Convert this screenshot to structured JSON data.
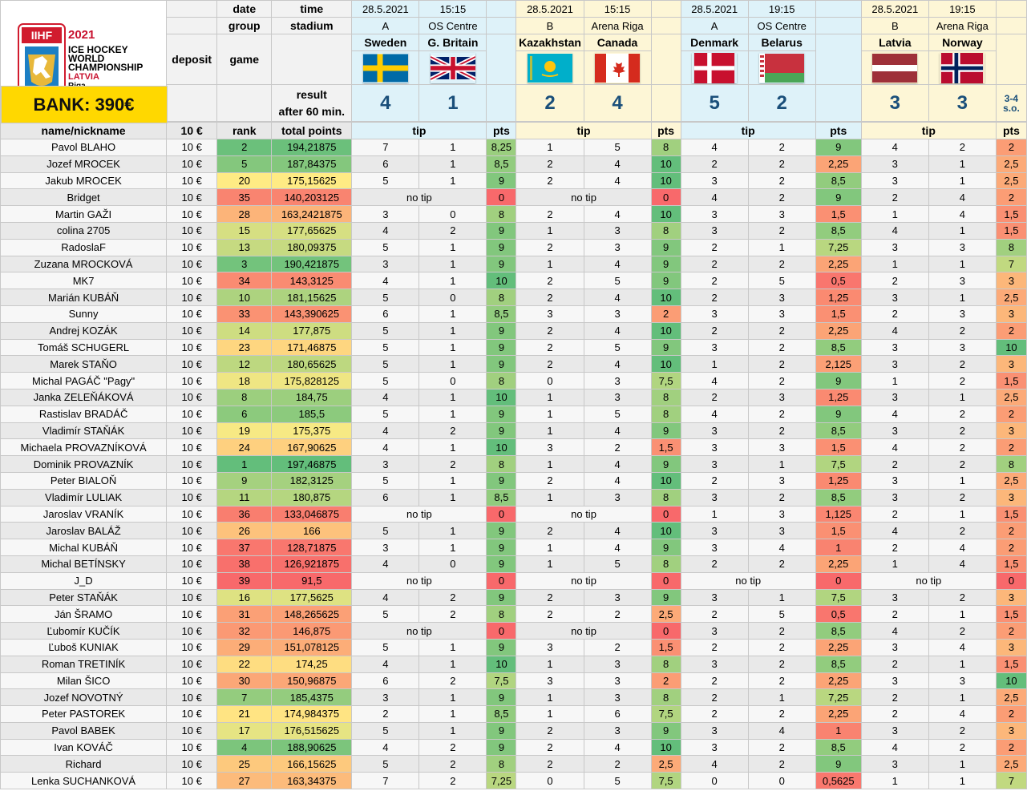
{
  "header": {
    "year": "2021",
    "event_line1": "ICE HOCKEY",
    "event_line2": "WORLD",
    "event_line3": "CHAMPIONSHIP",
    "host": "LATVIA",
    "city": "Riga",
    "logo_text": "IIHF",
    "bank_label": "BANK: 390€",
    "labels": {
      "date": "date",
      "time": "time",
      "group": "group",
      "stadium": "stadium",
      "deposit": "deposit",
      "game": "game",
      "result": "result",
      "after60": "after 60 min.",
      "name": "name/nickname",
      "deposit_val": "10 €",
      "rank": "rank",
      "total": "total points",
      "tip": "tip",
      "pts": "pts"
    }
  },
  "games": [
    {
      "date": "28.5.2021",
      "time": "15:15",
      "group": "A",
      "stadium": "OS Centre",
      "home": "Sweden",
      "away": "G. Britain",
      "home_score": "4",
      "away_score": "1",
      "note": "",
      "theme": "blue"
    },
    {
      "date": "28.5.2021",
      "time": "15:15",
      "group": "B",
      "stadium": "Arena Riga",
      "home": "Kazakhstan",
      "away": "Canada",
      "home_score": "2",
      "away_score": "4",
      "note": "",
      "theme": "yel"
    },
    {
      "date": "28.5.2021",
      "time": "19:15",
      "group": "A",
      "stadium": "OS Centre",
      "home": "Denmark",
      "away": "Belarus",
      "home_score": "5",
      "away_score": "2",
      "note": "",
      "theme": "blue"
    },
    {
      "date": "28.5.2021",
      "time": "19:15",
      "group": "B",
      "stadium": "Arena Riga",
      "home": "Latvia",
      "away": "Norway",
      "home_score": "3",
      "away_score": "3",
      "note": "3-4 s.o.",
      "theme": "yel"
    }
  ],
  "players": [
    {
      "name": "Pavol BLAHO",
      "dep": "10 €",
      "rank": "2",
      "total": "194,21875",
      "g": [
        [
          "7",
          "1",
          "8,25"
        ],
        [
          "1",
          "5",
          "8"
        ],
        [
          "4",
          "2",
          "9"
        ],
        [
          "4",
          "2",
          "2"
        ]
      ]
    },
    {
      "name": "Jozef MROCEK",
      "dep": "10 €",
      "rank": "5",
      "total": "187,84375",
      "g": [
        [
          "6",
          "1",
          "8,5"
        ],
        [
          "2",
          "4",
          "10"
        ],
        [
          "2",
          "2",
          "2,25"
        ],
        [
          "3",
          "1",
          "2,5"
        ]
      ]
    },
    {
      "name": "Jakub MROCEK",
      "dep": "10 €",
      "rank": "20",
      "total": "175,15625",
      "g": [
        [
          "5",
          "1",
          "9"
        ],
        [
          "2",
          "4",
          "10"
        ],
        [
          "3",
          "2",
          "8,5"
        ],
        [
          "3",
          "1",
          "2,5"
        ]
      ]
    },
    {
      "name": "Bridget",
      "dep": "10 €",
      "rank": "35",
      "total": "140,203125",
      "g": [
        [
          "no tip",
          "",
          "0"
        ],
        [
          "no tip",
          "",
          "0"
        ],
        [
          "4",
          "2",
          "9"
        ],
        [
          "2",
          "4",
          "2"
        ]
      ]
    },
    {
      "name": "Martin GAŽI",
      "dep": "10 €",
      "rank": "28",
      "total": "163,2421875",
      "g": [
        [
          "3",
          "0",
          "8"
        ],
        [
          "2",
          "4",
          "10"
        ],
        [
          "3",
          "3",
          "1,5"
        ],
        [
          "1",
          "4",
          "1,5"
        ]
      ]
    },
    {
      "name": "colina 2705",
      "dep": "10 €",
      "rank": "15",
      "total": "177,65625",
      "g": [
        [
          "4",
          "2",
          "9"
        ],
        [
          "1",
          "3",
          "8"
        ],
        [
          "3",
          "2",
          "8,5"
        ],
        [
          "4",
          "1",
          "1,5"
        ]
      ]
    },
    {
      "name": "RadoslaF",
      "dep": "10 €",
      "rank": "13",
      "total": "180,09375",
      "g": [
        [
          "5",
          "1",
          "9"
        ],
        [
          "2",
          "3",
          "9"
        ],
        [
          "2",
          "1",
          "7,25"
        ],
        [
          "3",
          "3",
          "8"
        ]
      ]
    },
    {
      "name": "Zuzana MROCKOVÁ",
      "dep": "10 €",
      "rank": "3",
      "total": "190,421875",
      "g": [
        [
          "3",
          "1",
          "9"
        ],
        [
          "1",
          "4",
          "9"
        ],
        [
          "2",
          "2",
          "2,25"
        ],
        [
          "1",
          "1",
          "7"
        ]
      ]
    },
    {
      "name": "MK7",
      "dep": "10 €",
      "rank": "34",
      "total": "143,3125",
      "g": [
        [
          "4",
          "1",
          "10"
        ],
        [
          "2",
          "5",
          "9"
        ],
        [
          "2",
          "5",
          "0,5"
        ],
        [
          "2",
          "3",
          "3"
        ]
      ]
    },
    {
      "name": "Marián KUBÁŇ",
      "dep": "10 €",
      "rank": "10",
      "total": "181,15625",
      "g": [
        [
          "5",
          "0",
          "8"
        ],
        [
          "2",
          "4",
          "10"
        ],
        [
          "2",
          "3",
          "1,25"
        ],
        [
          "3",
          "1",
          "2,5"
        ]
      ]
    },
    {
      "name": "Sunny",
      "dep": "10 €",
      "rank": "33",
      "total": "143,390625",
      "g": [
        [
          "6",
          "1",
          "8,5"
        ],
        [
          "3",
          "3",
          "2"
        ],
        [
          "3",
          "3",
          "1,5"
        ],
        [
          "2",
          "3",
          "3"
        ]
      ]
    },
    {
      "name": "Andrej KOZÁK",
      "dep": "10 €",
      "rank": "14",
      "total": "177,875",
      "g": [
        [
          "5",
          "1",
          "9"
        ],
        [
          "2",
          "4",
          "10"
        ],
        [
          "2",
          "2",
          "2,25"
        ],
        [
          "4",
          "2",
          "2"
        ]
      ]
    },
    {
      "name": "Tomáš SCHUGERL",
      "dep": "10 €",
      "rank": "23",
      "total": "171,46875",
      "g": [
        [
          "5",
          "1",
          "9"
        ],
        [
          "2",
          "5",
          "9"
        ],
        [
          "3",
          "2",
          "8,5"
        ],
        [
          "3",
          "3",
          "10"
        ]
      ]
    },
    {
      "name": "Marek STAŇO",
      "dep": "10 €",
      "rank": "12",
      "total": "180,65625",
      "g": [
        [
          "5",
          "1",
          "9"
        ],
        [
          "2",
          "4",
          "10"
        ],
        [
          "1",
          "2",
          "2,125"
        ],
        [
          "3",
          "2",
          "3"
        ]
      ]
    },
    {
      "name": "Michal PAGÁČ \"Pagy\"",
      "dep": "10 €",
      "rank": "18",
      "total": "175,828125",
      "g": [
        [
          "5",
          "0",
          "8"
        ],
        [
          "0",
          "3",
          "7,5"
        ],
        [
          "4",
          "2",
          "9"
        ],
        [
          "1",
          "2",
          "1,5"
        ]
      ]
    },
    {
      "name": "Janka ZELEŇÁKOVÁ",
      "dep": "10 €",
      "rank": "8",
      "total": "184,75",
      "g": [
        [
          "4",
          "1",
          "10"
        ],
        [
          "1",
          "3",
          "8"
        ],
        [
          "2",
          "3",
          "1,25"
        ],
        [
          "3",
          "1",
          "2,5"
        ]
      ]
    },
    {
      "name": "Rastislav BRADÁČ",
      "dep": "10 €",
      "rank": "6",
      "total": "185,5",
      "g": [
        [
          "5",
          "1",
          "9"
        ],
        [
          "1",
          "5",
          "8"
        ],
        [
          "4",
          "2",
          "9"
        ],
        [
          "4",
          "2",
          "2"
        ]
      ]
    },
    {
      "name": "Vladimír STAŇÁK",
      "dep": "10 €",
      "rank": "19",
      "total": "175,375",
      "g": [
        [
          "4",
          "2",
          "9"
        ],
        [
          "1",
          "4",
          "9"
        ],
        [
          "3",
          "2",
          "8,5"
        ],
        [
          "3",
          "2",
          "3"
        ]
      ]
    },
    {
      "name": "Michaela PROVAZNÍKOVÁ",
      "dep": "10 €",
      "rank": "24",
      "total": "167,90625",
      "g": [
        [
          "4",
          "1",
          "10"
        ],
        [
          "3",
          "2",
          "1,5"
        ],
        [
          "3",
          "3",
          "1,5"
        ],
        [
          "4",
          "2",
          "2"
        ]
      ]
    },
    {
      "name": "Dominik PROVAZNÍK",
      "dep": "10 €",
      "rank": "1",
      "total": "197,46875",
      "g": [
        [
          "3",
          "2",
          "8"
        ],
        [
          "1",
          "4",
          "9"
        ],
        [
          "3",
          "1",
          "7,5"
        ],
        [
          "2",
          "2",
          "8"
        ]
      ]
    },
    {
      "name": "Peter BIALOŇ",
      "dep": "10 €",
      "rank": "9",
      "total": "182,3125",
      "g": [
        [
          "5",
          "1",
          "9"
        ],
        [
          "2",
          "4",
          "10"
        ],
        [
          "2",
          "3",
          "1,25"
        ],
        [
          "3",
          "1",
          "2,5"
        ]
      ]
    },
    {
      "name": "Vladimír LULIAK",
      "dep": "10 €",
      "rank": "11",
      "total": "180,875",
      "g": [
        [
          "6",
          "1",
          "8,5"
        ],
        [
          "1",
          "3",
          "8"
        ],
        [
          "3",
          "2",
          "8,5"
        ],
        [
          "3",
          "2",
          "3"
        ]
      ]
    },
    {
      "name": "Jaroslav VRANÍK",
      "dep": "10 €",
      "rank": "36",
      "total": "133,046875",
      "g": [
        [
          "no tip",
          "",
          "0"
        ],
        [
          "no tip",
          "",
          "0"
        ],
        [
          "1",
          "3",
          "1,125"
        ],
        [
          "2",
          "1",
          "1,5"
        ]
      ]
    },
    {
      "name": "Jaroslav BALÁŽ",
      "dep": "10 €",
      "rank": "26",
      "total": "166",
      "g": [
        [
          "5",
          "1",
          "9"
        ],
        [
          "2",
          "4",
          "10"
        ],
        [
          "3",
          "3",
          "1,5"
        ],
        [
          "4",
          "2",
          "2"
        ]
      ]
    },
    {
      "name": "Michal KUBÁŇ",
      "dep": "10 €",
      "rank": "37",
      "total": "128,71875",
      "g": [
        [
          "3",
          "1",
          "9"
        ],
        [
          "1",
          "4",
          "9"
        ],
        [
          "3",
          "4",
          "1"
        ],
        [
          "2",
          "4",
          "2"
        ]
      ]
    },
    {
      "name": "Michal BETÍNSKY",
      "dep": "10 €",
      "rank": "38",
      "total": "126,921875",
      "g": [
        [
          "4",
          "0",
          "9"
        ],
        [
          "1",
          "5",
          "8"
        ],
        [
          "2",
          "2",
          "2,25"
        ],
        [
          "1",
          "4",
          "1,5"
        ]
      ]
    },
    {
      "name": "J_D",
      "dep": "10 €",
      "rank": "39",
      "total": "91,5",
      "g": [
        [
          "no tip",
          "",
          "0"
        ],
        [
          "no tip",
          "",
          "0"
        ],
        [
          "no tip",
          "",
          "0"
        ],
        [
          "no tip",
          "",
          "0"
        ]
      ]
    },
    {
      "name": "Peter STAŇÁK",
      "dep": "10 €",
      "rank": "16",
      "total": "177,5625",
      "g": [
        [
          "4",
          "2",
          "9"
        ],
        [
          "2",
          "3",
          "9"
        ],
        [
          "3",
          "1",
          "7,5"
        ],
        [
          "3",
          "2",
          "3"
        ]
      ]
    },
    {
      "name": "Ján ŠRAMO",
      "dep": "10 €",
      "rank": "31",
      "total": "148,265625",
      "g": [
        [
          "5",
          "2",
          "8"
        ],
        [
          "2",
          "2",
          "2,5"
        ],
        [
          "2",
          "5",
          "0,5"
        ],
        [
          "2",
          "1",
          "1,5"
        ]
      ]
    },
    {
      "name": "Ľubomír KUČÍK",
      "dep": "10 €",
      "rank": "32",
      "total": "146,875",
      "g": [
        [
          "no tip",
          "",
          "0"
        ],
        [
          "no tip",
          "",
          "0"
        ],
        [
          "3",
          "2",
          "8,5"
        ],
        [
          "4",
          "2",
          "2"
        ]
      ]
    },
    {
      "name": "Ľuboš KUNIAK",
      "dep": "10 €",
      "rank": "29",
      "total": "151,078125",
      "g": [
        [
          "5",
          "1",
          "9"
        ],
        [
          "3",
          "2",
          "1,5"
        ],
        [
          "2",
          "2",
          "2,25"
        ],
        [
          "3",
          "4",
          "3"
        ]
      ]
    },
    {
      "name": "Roman TRETINÍK",
      "dep": "10 €",
      "rank": "22",
      "total": "174,25",
      "g": [
        [
          "4",
          "1",
          "10"
        ],
        [
          "1",
          "3",
          "8"
        ],
        [
          "3",
          "2",
          "8,5"
        ],
        [
          "2",
          "1",
          "1,5"
        ]
      ]
    },
    {
      "name": "Milan ŠICO",
      "dep": "10 €",
      "rank": "30",
      "total": "150,96875",
      "g": [
        [
          "6",
          "2",
          "7,5"
        ],
        [
          "3",
          "3",
          "2"
        ],
        [
          "2",
          "2",
          "2,25"
        ],
        [
          "3",
          "3",
          "10"
        ]
      ]
    },
    {
      "name": "Jozef NOVOTNÝ",
      "dep": "10 €",
      "rank": "7",
      "total": "185,4375",
      "g": [
        [
          "3",
          "1",
          "9"
        ],
        [
          "1",
          "3",
          "8"
        ],
        [
          "2",
          "1",
          "7,25"
        ],
        [
          "2",
          "1",
          "2,5"
        ]
      ]
    },
    {
      "name": "Peter PASTOREK",
      "dep": "10 €",
      "rank": "21",
      "total": "174,984375",
      "g": [
        [
          "2",
          "1",
          "8,5"
        ],
        [
          "1",
          "6",
          "7,5"
        ],
        [
          "2",
          "2",
          "2,25"
        ],
        [
          "2",
          "4",
          "2"
        ]
      ]
    },
    {
      "name": "Pavol BABEK",
      "dep": "10 €",
      "rank": "17",
      "total": "176,515625",
      "g": [
        [
          "5",
          "1",
          "9"
        ],
        [
          "2",
          "3",
          "9"
        ],
        [
          "3",
          "4",
          "1"
        ],
        [
          "3",
          "2",
          "3"
        ]
      ]
    },
    {
      "name": "Ivan KOVÁČ",
      "dep": "10 €",
      "rank": "4",
      "total": "188,90625",
      "g": [
        [
          "4",
          "2",
          "9"
        ],
        [
          "2",
          "4",
          "10"
        ],
        [
          "3",
          "2",
          "8,5"
        ],
        [
          "4",
          "2",
          "2"
        ]
      ]
    },
    {
      "name": "Richard",
      "dep": "10 €",
      "rank": "25",
      "total": "166,15625",
      "g": [
        [
          "5",
          "2",
          "8"
        ],
        [
          "2",
          "2",
          "2,5"
        ],
        [
          "4",
          "2",
          "9"
        ],
        [
          "3",
          "1",
          "2,5"
        ]
      ]
    },
    {
      "name": "Lenka SUCHANKOVÁ",
      "dep": "10 €",
      "rank": "27",
      "total": "163,34375",
      "g": [
        [
          "7",
          "2",
          "7,25"
        ],
        [
          "0",
          "5",
          "7,5"
        ],
        [
          "0",
          "0",
          "0,5625"
        ],
        [
          "1",
          "1",
          "7"
        ]
      ]
    }
  ]
}
